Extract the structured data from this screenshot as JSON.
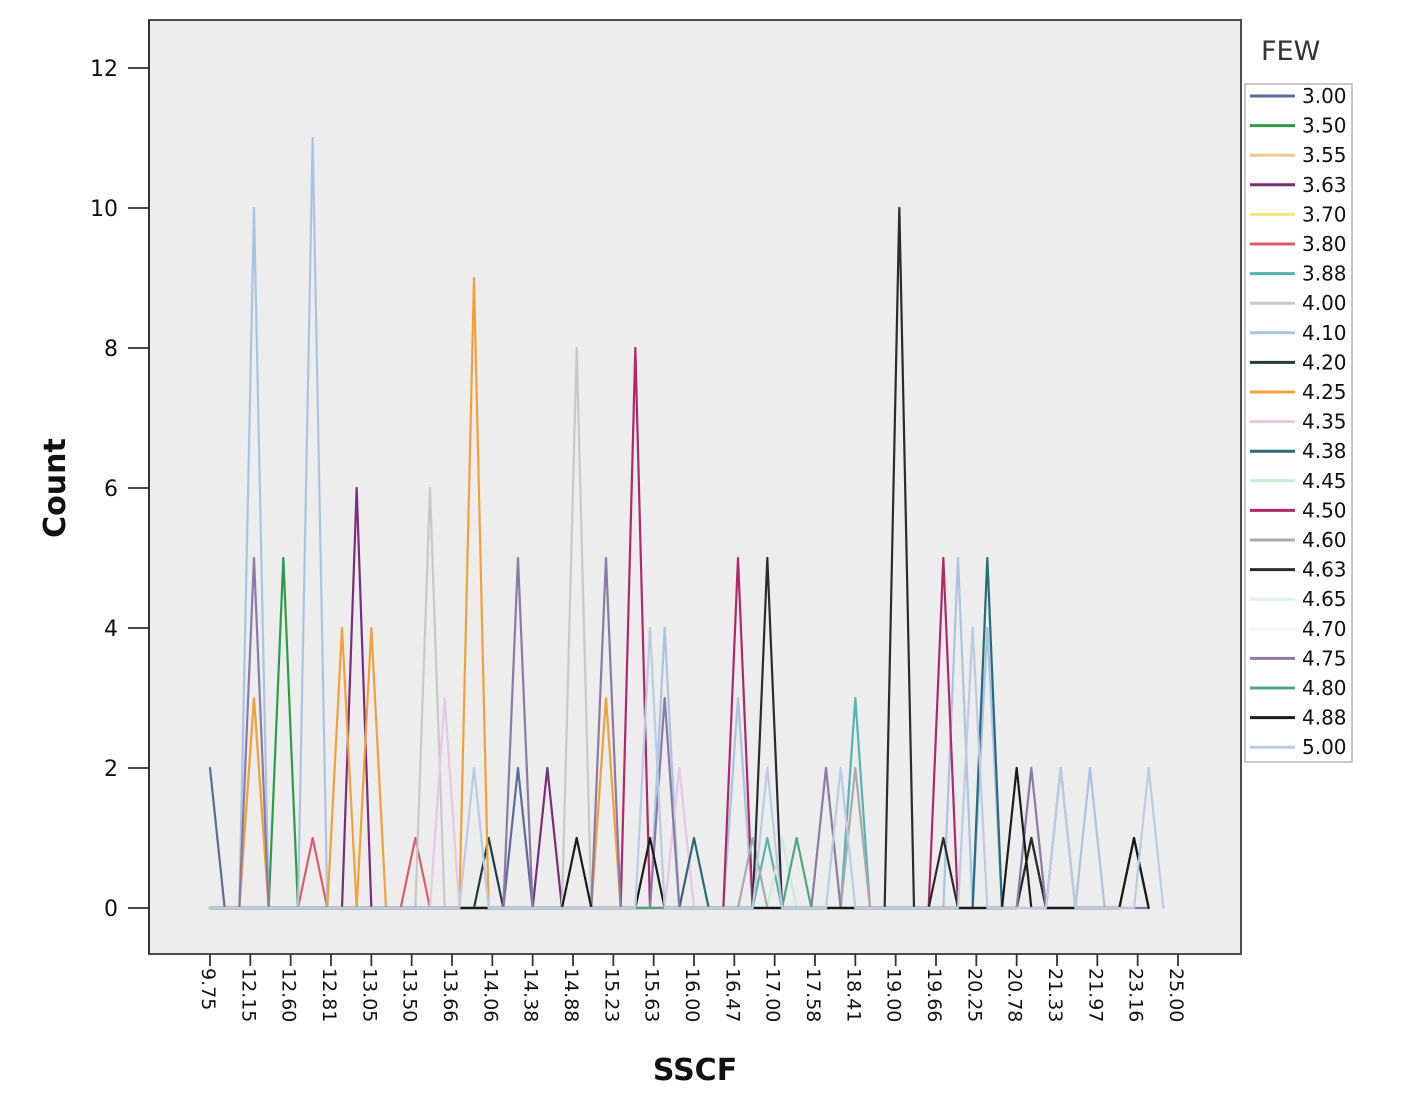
{
  "chart_data": {
    "type": "line",
    "title": "",
    "xlabel": "SSCF",
    "ylabel": "Count",
    "ylim": [
      0,
      12
    ],
    "y_ticks": [
      0,
      2,
      4,
      6,
      8,
      10,
      12
    ],
    "x_tick_labels": [
      "9.75",
      "12.15",
      "12.60",
      "12.81",
      "13.05",
      "13.50",
      "13.66",
      "14.06",
      "14.38",
      "14.88",
      "15.23",
      "15.63",
      "16.00",
      "16.47",
      "17.00",
      "17.58",
      "18.41",
      "19.00",
      "19.66",
      "20.25",
      "20.78",
      "21.33",
      "21.97",
      "23.16",
      "25.00"
    ],
    "legend": {
      "title": "FEW",
      "placement": "right"
    },
    "grid": false,
    "series": [
      {
        "name": "3.00",
        "color": "#5e6a9b",
        "points": [
          [
            0,
            2
          ],
          [
            1,
            0
          ],
          [
            20,
            0
          ],
          [
            21,
            2
          ],
          [
            22,
            0
          ],
          [
            49,
            0
          ]
        ]
      },
      {
        "name": "3.50",
        "color": "#2f9b48",
        "points": [
          [
            0,
            0
          ],
          [
            4,
            0
          ],
          [
            5,
            5
          ],
          [
            6,
            0
          ],
          [
            49,
            0
          ]
        ]
      },
      {
        "name": "3.55",
        "color": "#f0c98c",
        "points": [
          [
            0,
            0
          ],
          [
            2,
            0
          ],
          [
            3,
            3
          ],
          [
            4,
            0
          ],
          [
            49,
            0
          ]
        ]
      },
      {
        "name": "3.63",
        "color": "#7a2d7a",
        "points": [
          [
            0,
            0
          ],
          [
            9,
            0
          ],
          [
            10,
            6
          ],
          [
            11,
            0
          ],
          [
            22,
            0
          ],
          [
            23,
            2
          ],
          [
            24,
            0
          ],
          [
            49,
            0
          ]
        ]
      },
      {
        "name": "3.70",
        "color": "#f5e37a",
        "points": [
          [
            0,
            0
          ],
          [
            49,
            0
          ]
        ]
      },
      {
        "name": "3.80",
        "color": "#e05a6a",
        "points": [
          [
            0,
            0
          ],
          [
            6,
            0
          ],
          [
            7,
            1
          ],
          [
            8,
            0
          ],
          [
            13,
            0
          ],
          [
            14,
            1
          ],
          [
            15,
            0
          ],
          [
            49,
            0
          ]
        ]
      },
      {
        "name": "3.88",
        "color": "#56b3b3",
        "points": [
          [
            0,
            0
          ],
          [
            37,
            0
          ],
          [
            38,
            1
          ],
          [
            39,
            0
          ],
          [
            43,
            0
          ],
          [
            44,
            3
          ],
          [
            45,
            0
          ],
          [
            49,
            0
          ]
        ]
      },
      {
        "name": "4.00",
        "color": "#c8c8c8",
        "points": [
          [
            0,
            0
          ],
          [
            14,
            0
          ],
          [
            15,
            6
          ],
          [
            16,
            0
          ],
          [
            24,
            0
          ],
          [
            25,
            8
          ],
          [
            26,
            0
          ],
          [
            49,
            0
          ]
        ]
      },
      {
        "name": "4.10",
        "color": "#a9c4e2",
        "points": [
          [
            0,
            0
          ],
          [
            2,
            0
          ],
          [
            3,
            10
          ],
          [
            4,
            0
          ],
          [
            6,
            0
          ],
          [
            7,
            11
          ],
          [
            8,
            0
          ],
          [
            30,
            0
          ],
          [
            31,
            4
          ],
          [
            32,
            0
          ],
          [
            35,
            0
          ],
          [
            36,
            3
          ],
          [
            37,
            0
          ],
          [
            50,
            0
          ],
          [
            51,
            5
          ],
          [
            52,
            0
          ],
          [
            53,
            4
          ],
          [
            54,
            0
          ],
          [
            59,
            0
          ],
          [
            60,
            2
          ],
          [
            61,
            0
          ]
        ]
      },
      {
        "name": "4.20",
        "color": "#1f3b3b",
        "points": [
          [
            0,
            0
          ],
          [
            18,
            0
          ],
          [
            19,
            1
          ],
          [
            20,
            0
          ],
          [
            49,
            0
          ]
        ]
      },
      {
        "name": "4.25",
        "color": "#f2a13a",
        "points": [
          [
            0,
            0
          ],
          [
            2,
            0
          ],
          [
            3,
            3
          ],
          [
            4,
            0
          ],
          [
            8,
            0
          ],
          [
            9,
            4
          ],
          [
            10,
            0
          ],
          [
            11,
            4
          ],
          [
            12,
            0
          ],
          [
            17,
            0
          ],
          [
            18,
            9
          ],
          [
            19,
            0
          ],
          [
            26,
            0
          ],
          [
            27,
            3
          ],
          [
            28,
            0
          ],
          [
            49,
            0
          ]
        ]
      },
      {
        "name": "4.35",
        "color": "#e6c7e6",
        "points": [
          [
            0,
            0
          ],
          [
            15,
            0
          ],
          [
            16,
            3
          ],
          [
            17,
            0
          ],
          [
            31,
            0
          ],
          [
            32,
            2
          ],
          [
            33,
            0
          ],
          [
            49,
            0
          ]
        ]
      },
      {
        "name": "4.38",
        "color": "#2a6a7a",
        "points": [
          [
            0,
            0
          ],
          [
            32,
            0
          ],
          [
            33,
            1
          ],
          [
            34,
            0
          ],
          [
            52,
            0
          ],
          [
            53,
            5
          ],
          [
            54,
            0
          ],
          [
            55,
            0
          ],
          [
            56,
            1
          ],
          [
            57,
            0
          ],
          [
            59,
            0
          ]
        ]
      },
      {
        "name": "4.45",
        "color": "#c9ecd9",
        "points": [
          [
            0,
            0
          ],
          [
            38,
            0
          ],
          [
            39,
            1
          ],
          [
            40,
            0
          ],
          [
            49,
            0
          ]
        ]
      },
      {
        "name": "4.50",
        "color": "#b0286a",
        "points": [
          [
            0,
            0
          ],
          [
            28,
            0
          ],
          [
            29,
            8
          ],
          [
            30,
            0
          ],
          [
            35,
            0
          ],
          [
            36,
            5
          ],
          [
            37,
            0
          ],
          [
            49,
            0
          ],
          [
            50,
            5
          ],
          [
            51,
            0
          ]
        ]
      },
      {
        "name": "4.60",
        "color": "#aaaaaa",
        "points": [
          [
            0,
            0
          ],
          [
            36,
            0
          ],
          [
            37,
            1
          ],
          [
            38,
            0
          ],
          [
            43,
            0
          ],
          [
            44,
            2
          ],
          [
            45,
            0
          ],
          [
            49,
            0
          ]
        ]
      },
      {
        "name": "4.63",
        "color": "#2b2b2b",
        "points": [
          [
            0,
            0
          ],
          [
            36,
            0
          ],
          [
            37,
            0
          ],
          [
            38,
            5
          ],
          [
            39,
            0
          ],
          [
            46,
            0
          ],
          [
            47,
            10
          ],
          [
            48,
            0
          ],
          [
            49,
            0
          ],
          [
            50,
            1
          ],
          [
            51,
            0
          ],
          [
            55,
            0
          ],
          [
            56,
            1
          ],
          [
            57,
            0
          ],
          [
            62,
            0
          ],
          [
            63,
            1
          ],
          [
            64,
            0
          ]
        ]
      },
      {
        "name": "4.65",
        "color": "#dff2ee",
        "points": [
          [
            0,
            0
          ],
          [
            49,
            0
          ]
        ]
      },
      {
        "name": "4.70",
        "color": "#f6f6f6",
        "points": [
          [
            0,
            0
          ],
          [
            49,
            0
          ]
        ]
      },
      {
        "name": "4.75",
        "color": "#8a7aa6",
        "points": [
          [
            0,
            0
          ],
          [
            2,
            0
          ],
          [
            3,
            5
          ],
          [
            4,
            0
          ],
          [
            20,
            0
          ],
          [
            21,
            5
          ],
          [
            22,
            0
          ],
          [
            26,
            0
          ],
          [
            27,
            5
          ],
          [
            28,
            0
          ],
          [
            30,
            0
          ],
          [
            31,
            3
          ],
          [
            32,
            0
          ],
          [
            41,
            0
          ],
          [
            42,
            2
          ],
          [
            43,
            0
          ],
          [
            55,
            0
          ],
          [
            56,
            2
          ],
          [
            57,
            0
          ],
          [
            58,
            2
          ],
          [
            59,
            0
          ],
          [
            64,
            0
          ]
        ]
      },
      {
        "name": "4.80",
        "color": "#4aa884",
        "points": [
          [
            0,
            0
          ],
          [
            39,
            0
          ],
          [
            40,
            1
          ],
          [
            41,
            0
          ],
          [
            49,
            0
          ]
        ]
      },
      {
        "name": "4.88",
        "color": "#1a1a1a",
        "points": [
          [
            0,
            0
          ],
          [
            24,
            0
          ],
          [
            25,
            1
          ],
          [
            26,
            0
          ],
          [
            29,
            0
          ],
          [
            30,
            1
          ],
          [
            31,
            0
          ],
          [
            54,
            0
          ],
          [
            55,
            2
          ],
          [
            56,
            0
          ],
          [
            62,
            0
          ],
          [
            63,
            1
          ],
          [
            64,
            0
          ]
        ]
      },
      {
        "name": "5.00",
        "color": "#bccbe4",
        "points": [
          [
            0,
            0
          ],
          [
            17,
            0
          ],
          [
            18,
            2
          ],
          [
            19,
            0
          ],
          [
            29,
            0
          ],
          [
            30,
            4
          ],
          [
            31,
            0
          ],
          [
            37,
            0
          ],
          [
            38,
            2
          ],
          [
            39,
            0
          ],
          [
            42,
            0
          ],
          [
            43,
            2
          ],
          [
            44,
            0
          ],
          [
            51,
            0
          ],
          [
            52,
            4
          ],
          [
            53,
            0
          ],
          [
            57,
            0
          ],
          [
            58,
            2
          ],
          [
            59,
            0
          ],
          [
            63,
            0
          ],
          [
            64,
            2
          ],
          [
            65,
            0
          ]
        ]
      }
    ]
  }
}
